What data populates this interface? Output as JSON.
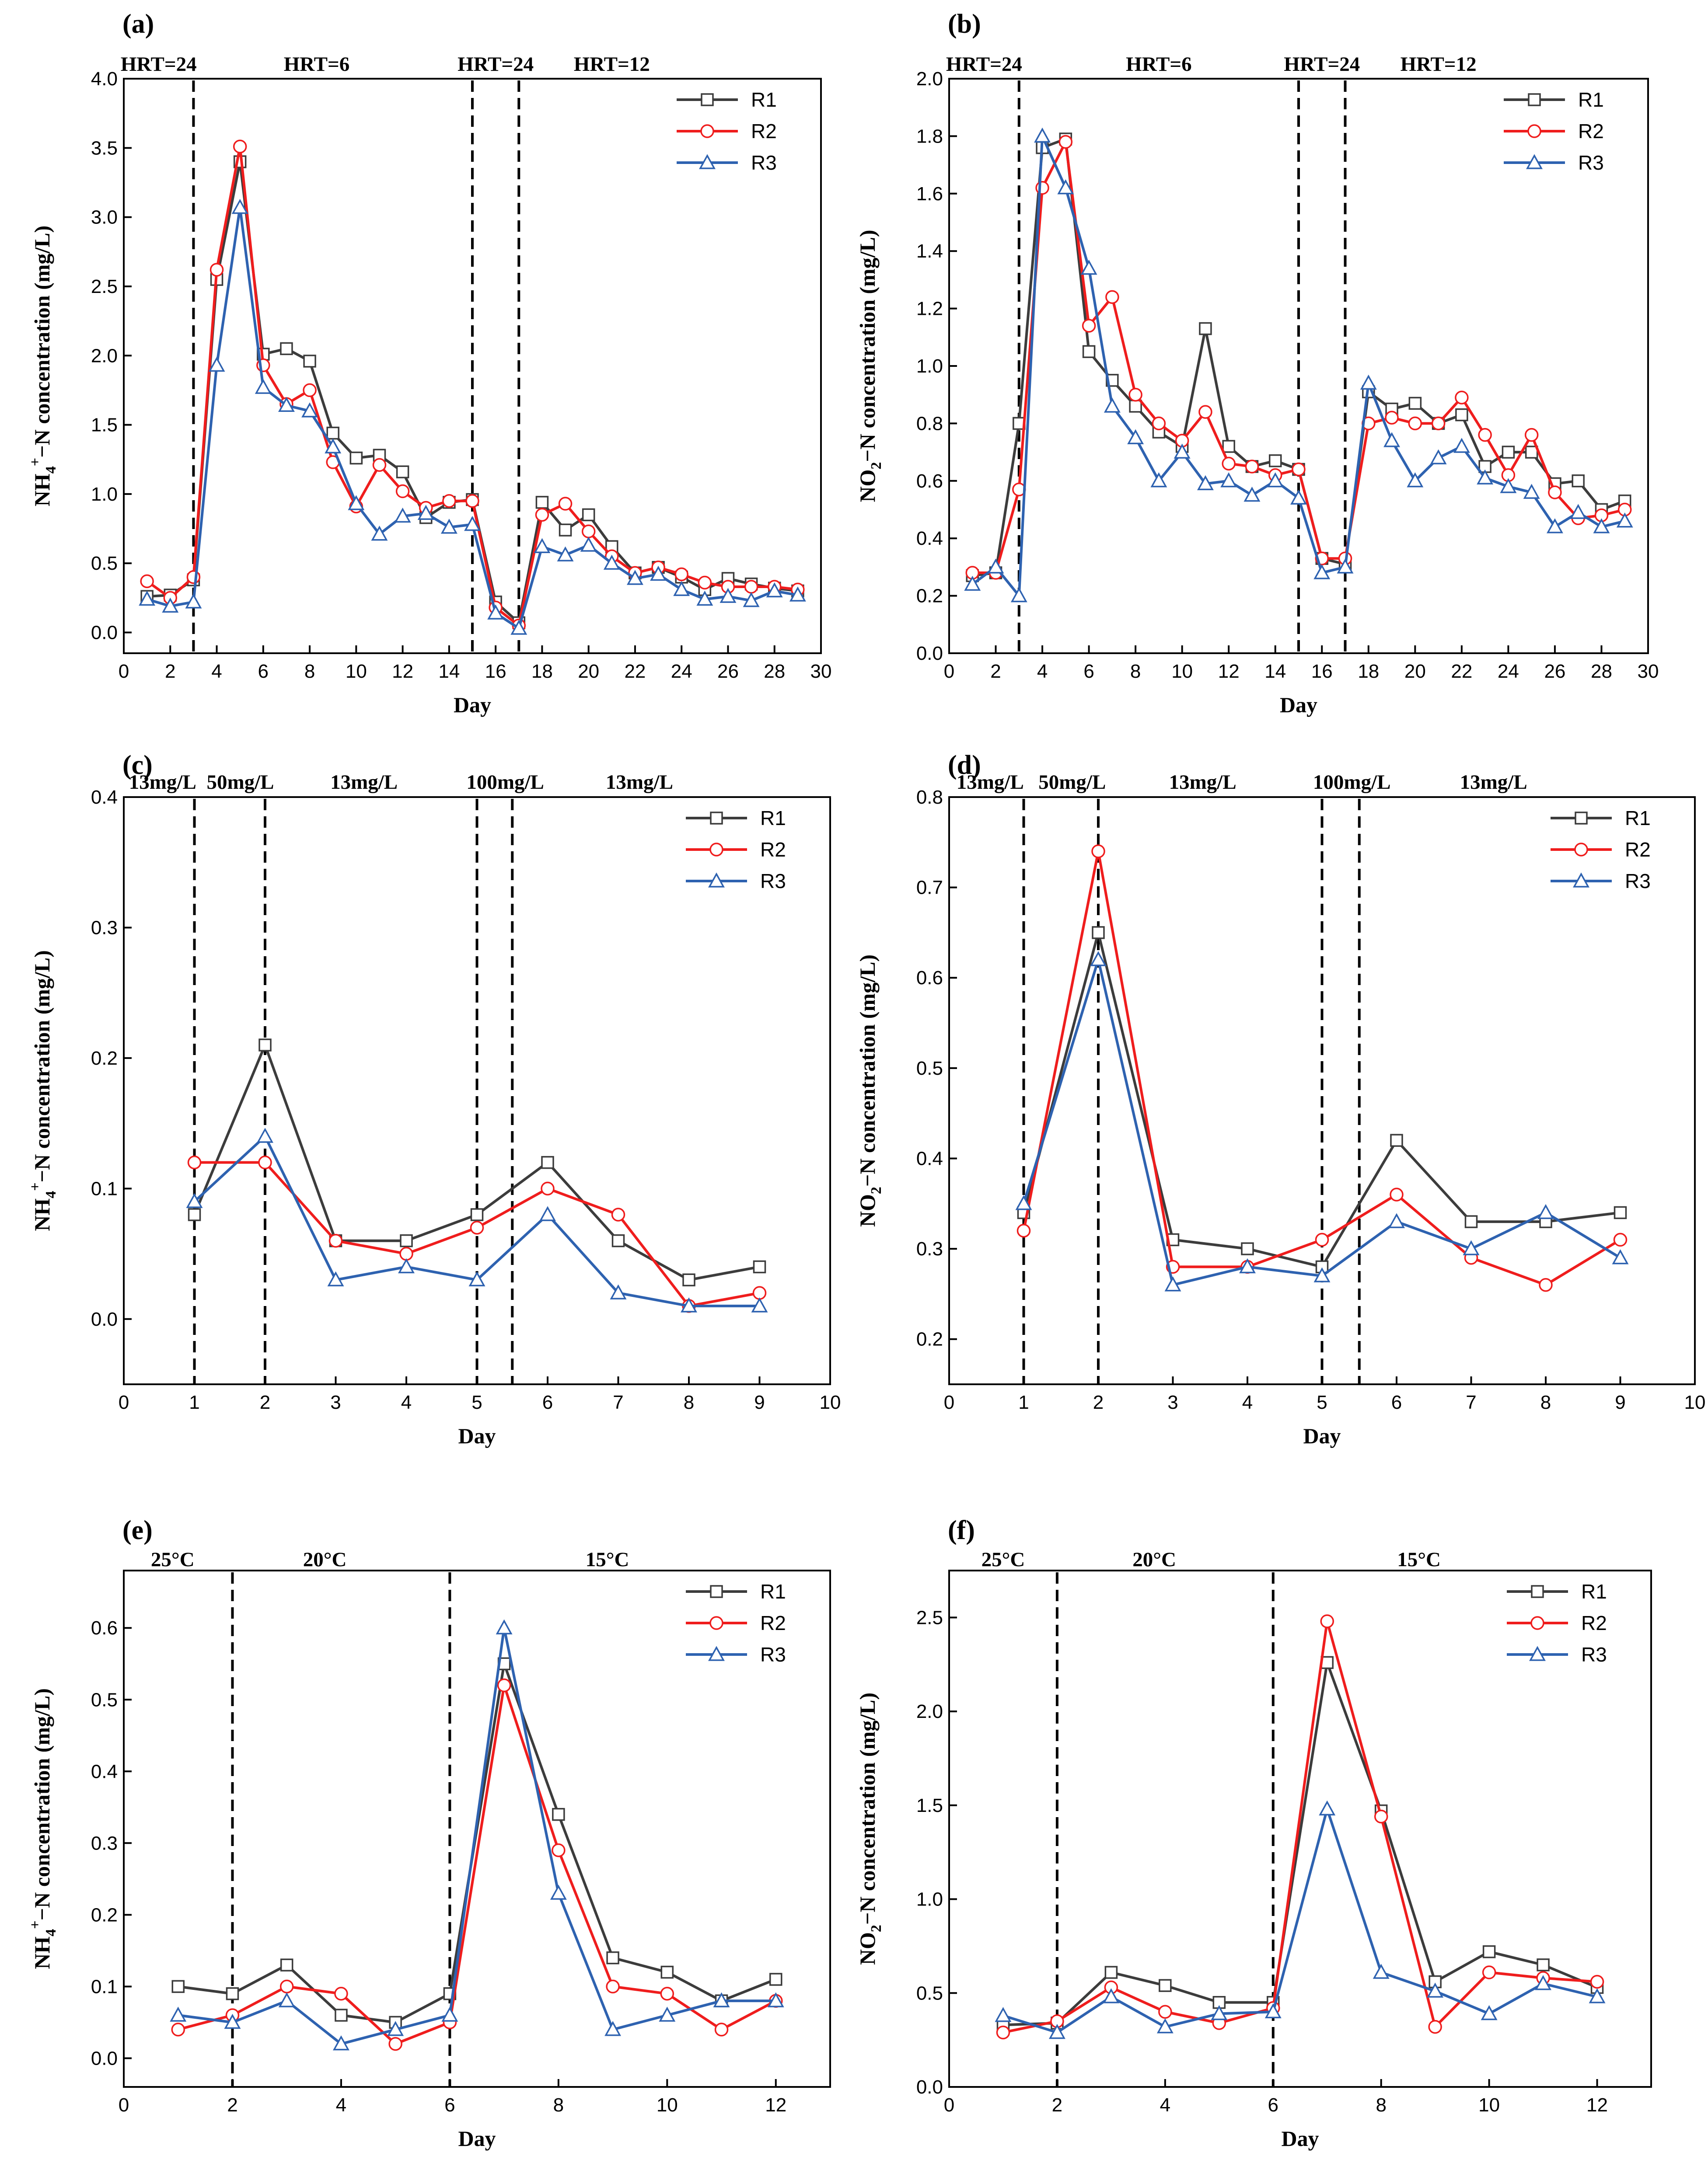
{
  "figure": {
    "panels": [
      "a",
      "b",
      "c",
      "d",
      "e",
      "f"
    ]
  },
  "colors": {
    "R1": "#3c3c3c",
    "R2": "#ef1d1d",
    "R3": "#2e62b0"
  },
  "chart_data": [
    {
      "id": "a",
      "type": "line",
      "panel_label": "(a)",
      "xlabel": "Day",
      "ylabel": "NH4+−N concentration (mg/L)",
      "ylabel_parts": {
        "base": "NH",
        "sub": "4",
        "sup": "+",
        "rest": "−N concentration (mg/L)"
      },
      "xlim": [
        0,
        30
      ],
      "ylim": [
        -0.15,
        4.0
      ],
      "xticks": [
        0,
        2,
        4,
        6,
        8,
        10,
        12,
        14,
        16,
        18,
        20,
        22,
        24,
        26,
        28,
        30
      ],
      "xtick_labels": [
        "0",
        "2",
        "4",
        "6",
        "8",
        "10",
        "12",
        "14",
        "16",
        "18",
        "20",
        "22",
        "24",
        "26",
        "28",
        "30"
      ],
      "yticks": [
        0.0,
        0.5,
        1.0,
        1.5,
        2.0,
        2.5,
        3.0,
        3.5,
        4.0
      ],
      "ytick_labels": [
        "0.0",
        "0.5",
        "1.0",
        "1.5",
        "2.0",
        "2.5",
        "3.0",
        "3.5",
        "4.0"
      ],
      "vlines": [
        3,
        15,
        17
      ],
      "phases": [
        {
          "label": "HRT=24",
          "x": 1.5
        },
        {
          "label": "HRT=6",
          "x": 8.3
        },
        {
          "label": "HRT=24",
          "x": 16.0
        },
        {
          "label": "HRT=12",
          "x": 21.0
        }
      ],
      "legend_position": "top-right",
      "x": [
        1,
        2,
        3,
        4,
        5,
        6,
        7,
        8,
        9,
        10,
        11,
        12,
        13,
        14,
        15,
        16,
        17,
        18,
        19,
        20,
        21,
        22,
        23,
        24,
        25,
        26,
        27,
        28,
        29
      ],
      "series": [
        {
          "name": "R1",
          "values": [
            0.26,
            0.27,
            0.38,
            2.55,
            3.4,
            2.01,
            2.05,
            1.96,
            1.44,
            1.26,
            1.28,
            1.16,
            0.83,
            0.94,
            0.96,
            0.22,
            0.07,
            0.94,
            0.74,
            0.85,
            0.62,
            0.43,
            0.47,
            0.4,
            0.31,
            0.39,
            0.35,
            0.32,
            0.3
          ]
        },
        {
          "name": "R2",
          "values": [
            0.37,
            0.25,
            0.4,
            2.62,
            3.51,
            1.93,
            1.65,
            1.75,
            1.23,
            0.91,
            1.21,
            1.02,
            0.9,
            0.95,
            0.95,
            0.18,
            0.05,
            0.85,
            0.93,
            0.73,
            0.55,
            0.43,
            0.47,
            0.42,
            0.36,
            0.33,
            0.33,
            0.33,
            0.31
          ]
        },
        {
          "name": "R3",
          "values": [
            0.24,
            0.19,
            0.22,
            1.93,
            3.07,
            1.77,
            1.64,
            1.6,
            1.34,
            0.93,
            0.71,
            0.84,
            0.86,
            0.76,
            0.78,
            0.14,
            0.03,
            0.62,
            0.56,
            0.63,
            0.5,
            0.39,
            0.42,
            0.31,
            0.24,
            0.26,
            0.23,
            0.3,
            0.27
          ]
        }
      ]
    },
    {
      "id": "b",
      "type": "line",
      "panel_label": "(b)",
      "xlabel": "Day",
      "ylabel": "NO2−N concentration (mg/L)",
      "ylabel_parts": {
        "base": "NO",
        "sub": "2",
        "sup": "",
        "rest": "−N concentration (mg/L)"
      },
      "xlim": [
        0,
        30
      ],
      "ylim": [
        0.0,
        2.0
      ],
      "xticks": [
        0,
        2,
        4,
        6,
        8,
        10,
        12,
        14,
        16,
        18,
        20,
        22,
        24,
        26,
        28,
        30
      ],
      "xtick_labels": [
        "0",
        "2",
        "4",
        "6",
        "8",
        "10",
        "12",
        "14",
        "16",
        "18",
        "20",
        "22",
        "24",
        "26",
        "28",
        "30"
      ],
      "yticks": [
        0.0,
        0.2,
        0.4,
        0.6,
        0.8,
        1.0,
        1.2,
        1.4,
        1.6,
        1.8,
        2.0
      ],
      "ytick_labels": [
        "0.0",
        "0.2",
        "0.4",
        "0.6",
        "0.8",
        "1.0",
        "1.2",
        "1.4",
        "1.6",
        "1.8",
        "2.0"
      ],
      "vlines": [
        3,
        15,
        17
      ],
      "phases": [
        {
          "label": "HRT=24",
          "x": 1.5
        },
        {
          "label": "HRT=6",
          "x": 9.0
        },
        {
          "label": "HRT=24",
          "x": 16.0
        },
        {
          "label": "HRT=12",
          "x": 21.0
        }
      ],
      "legend_position": "top-right",
      "x": [
        1,
        2,
        3,
        4,
        5,
        6,
        7,
        8,
        9,
        10,
        11,
        12,
        13,
        14,
        15,
        16,
        17,
        18,
        19,
        20,
        21,
        22,
        23,
        24,
        25,
        26,
        27,
        28,
        29
      ],
      "series": [
        {
          "name": "R1",
          "values": [
            0.27,
            0.28,
            0.8,
            1.76,
            1.79,
            1.05,
            0.95,
            0.86,
            0.77,
            0.72,
            1.13,
            0.72,
            0.65,
            0.67,
            0.64,
            0.33,
            0.31,
            0.91,
            0.85,
            0.87,
            0.8,
            0.83,
            0.65,
            0.7,
            0.7,
            0.59,
            0.6,
            0.5,
            0.53
          ]
        },
        {
          "name": "R2",
          "values": [
            0.28,
            0.28,
            0.57,
            1.62,
            1.78,
            1.14,
            1.24,
            0.9,
            0.8,
            0.74,
            0.84,
            0.66,
            0.65,
            0.62,
            0.64,
            0.33,
            0.33,
            0.8,
            0.82,
            0.8,
            0.8,
            0.89,
            0.76,
            0.62,
            0.76,
            0.56,
            0.47,
            0.48,
            0.5
          ]
        },
        {
          "name": "R3",
          "values": [
            0.24,
            0.3,
            0.2,
            1.8,
            1.62,
            1.34,
            0.86,
            0.75,
            0.6,
            0.7,
            0.59,
            0.6,
            0.55,
            0.6,
            0.54,
            0.28,
            0.3,
            0.94,
            0.74,
            0.6,
            0.68,
            0.72,
            0.61,
            0.58,
            0.56,
            0.44,
            0.49,
            0.44,
            0.46
          ]
        }
      ]
    },
    {
      "id": "c",
      "type": "line",
      "panel_label": "(c)",
      "xlabel": "Day",
      "ylabel": "NH4+−N concentration (mg/L)",
      "ylabel_parts": {
        "base": "NH",
        "sub": "4",
        "sup": "+",
        "rest": "−N concentration (mg/L)"
      },
      "xlim": [
        0,
        10
      ],
      "ylim": [
        -0.05,
        0.4
      ],
      "xticks": [
        0,
        1,
        2,
        3,
        4,
        5,
        6,
        7,
        8,
        9,
        10
      ],
      "xtick_labels": [
        "0",
        "1",
        "2",
        "3",
        "4",
        "5",
        "6",
        "7",
        "8",
        "9",
        "10"
      ],
      "yticks": [
        0.0,
        0.1,
        0.2,
        0.3,
        0.4
      ],
      "ytick_labels": [
        "0.0",
        "0.1",
        "0.2",
        "0.3",
        "0.4"
      ],
      "vlines": [
        1,
        2,
        5,
        5.5
      ],
      "phases": [
        {
          "label": "13mg/L",
          "x": 0.55
        },
        {
          "label": "50mg/L",
          "x": 1.65
        },
        {
          "label": "13mg/L",
          "x": 3.4
        },
        {
          "label": "100mg/L",
          "x": 5.4
        },
        {
          "label": "13mg/L",
          "x": 7.3
        }
      ],
      "legend_position": "top-right",
      "x": [
        1,
        2,
        3,
        4,
        5,
        6,
        7,
        8,
        9
      ],
      "series": [
        {
          "name": "R1",
          "values": [
            0.08,
            0.21,
            0.06,
            0.06,
            0.08,
            0.12,
            0.06,
            0.03,
            0.04
          ]
        },
        {
          "name": "R2",
          "values": [
            0.12,
            0.12,
            0.06,
            0.05,
            0.07,
            0.1,
            0.08,
            0.01,
            0.02
          ]
        },
        {
          "name": "R3",
          "values": [
            0.09,
            0.14,
            0.03,
            0.04,
            0.03,
            0.08,
            0.02,
            0.01,
            0.01
          ]
        }
      ]
    },
    {
      "id": "d",
      "type": "line",
      "panel_label": "(d)",
      "xlabel": "Day",
      "ylabel": "NO2−N concentration (mg/L)",
      "ylabel_parts": {
        "base": "NO",
        "sub": "2",
        "sup": "",
        "rest": "−N concentration (mg/L)"
      },
      "xlim": [
        0,
        10
      ],
      "ylim": [
        0.15,
        0.8
      ],
      "xticks": [
        0,
        1,
        2,
        3,
        4,
        5,
        6,
        7,
        8,
        9,
        10
      ],
      "xtick_labels": [
        "0",
        "1",
        "2",
        "3",
        "4",
        "5",
        "6",
        "7",
        "8",
        "9",
        "10"
      ],
      "yticks": [
        0.2,
        0.3,
        0.4,
        0.5,
        0.6,
        0.7,
        0.8
      ],
      "ytick_labels": [
        "0.2",
        "0.3",
        "0.4",
        "0.5",
        "0.6",
        "0.7",
        "0.8"
      ],
      "vlines": [
        1,
        2,
        5,
        5.5
      ],
      "phases": [
        {
          "label": "13mg/L",
          "x": 0.55
        },
        {
          "label": "50mg/L",
          "x": 1.65
        },
        {
          "label": "13mg/L",
          "x": 3.4
        },
        {
          "label": "100mg/L",
          "x": 5.4
        },
        {
          "label": "13mg/L",
          "x": 7.3
        }
      ],
      "legend_position": "top-right",
      "x": [
        1,
        2,
        3,
        4,
        5,
        6,
        7,
        8,
        9
      ],
      "series": [
        {
          "name": "R1",
          "values": [
            0.34,
            0.65,
            0.31,
            0.3,
            0.28,
            0.42,
            0.33,
            0.33,
            0.34
          ]
        },
        {
          "name": "R2",
          "values": [
            0.32,
            0.74,
            0.28,
            0.28,
            0.31,
            0.36,
            0.29,
            0.26,
            0.31
          ]
        },
        {
          "name": "R3",
          "values": [
            0.35,
            0.62,
            0.26,
            0.28,
            0.27,
            0.33,
            0.3,
            0.34,
            0.29
          ]
        }
      ]
    },
    {
      "id": "e",
      "type": "line",
      "panel_label": "(e)",
      "xlabel": "Day",
      "ylabel": "NH4+−N concentration (mg/L)",
      "ylabel_parts": {
        "base": "NH",
        "sub": "4",
        "sup": "+",
        "rest": "−N concentration (mg/L)"
      },
      "xlim": [
        0,
        13
      ],
      "ylim": [
        -0.04,
        0.68
      ],
      "xticks": [
        0,
        2,
        4,
        6,
        8,
        10,
        12
      ],
      "xtick_labels": [
        "0",
        "2",
        "4",
        "6",
        "8",
        "10",
        "12"
      ],
      "yticks": [
        0.0,
        0.1,
        0.2,
        0.3,
        0.4,
        0.5,
        0.6
      ],
      "ytick_labels": [
        "0.0",
        "0.1",
        "0.2",
        "0.3",
        "0.4",
        "0.5",
        "0.6"
      ],
      "vlines": [
        2,
        6
      ],
      "phases": [
        {
          "label": "25°C",
          "x": 0.9
        },
        {
          "label": "20°C",
          "x": 3.7
        },
        {
          "label": "15°C",
          "x": 8.9
        }
      ],
      "legend_position": "top-right",
      "x": [
        1,
        2,
        3,
        4,
        5,
        6,
        7,
        8,
        9,
        10,
        11,
        12
      ],
      "series": [
        {
          "name": "R1",
          "values": [
            0.1,
            0.09,
            0.13,
            0.06,
            0.05,
            0.09,
            0.55,
            0.34,
            0.14,
            0.12,
            0.08,
            0.11
          ]
        },
        {
          "name": "R2",
          "values": [
            0.04,
            0.06,
            0.1,
            0.09,
            0.02,
            0.05,
            0.52,
            0.29,
            0.1,
            0.09,
            0.04,
            0.08
          ]
        },
        {
          "name": "R3",
          "values": [
            0.06,
            0.05,
            0.08,
            0.02,
            0.04,
            0.06,
            0.6,
            0.23,
            0.04,
            0.06,
            0.08,
            0.08
          ]
        }
      ]
    },
    {
      "id": "f",
      "type": "line",
      "panel_label": "(f)",
      "xlabel": "Day",
      "ylabel": "NO2−N concentration (mg/L)",
      "ylabel_parts": {
        "base": "NO",
        "sub": "2",
        "sup": "",
        "rest": "−N concentration (mg/L)"
      },
      "xlim": [
        0,
        13
      ],
      "ylim": [
        0.0,
        2.75
      ],
      "xticks": [
        0,
        2,
        4,
        6,
        8,
        10,
        12
      ],
      "xtick_labels": [
        "0",
        "2",
        "4",
        "6",
        "8",
        "10",
        "12"
      ],
      "yticks": [
        0.0,
        0.5,
        1.0,
        1.5,
        2.0,
        2.5
      ],
      "ytick_labels": [
        "0.0",
        "0.5",
        "1.0",
        "1.5",
        "2.0",
        "2.5"
      ],
      "vlines": [
        2,
        6
      ],
      "phases": [
        {
          "label": "25°C",
          "x": 1.0
        },
        {
          "label": "20°C",
          "x": 3.8
        },
        {
          "label": "15°C",
          "x": 8.7
        }
      ],
      "legend_position": "top-right",
      "x": [
        1,
        2,
        3,
        4,
        5,
        6,
        7,
        8,
        9,
        10,
        11,
        12
      ],
      "series": [
        {
          "name": "R1",
          "values": [
            0.33,
            0.34,
            0.61,
            0.54,
            0.45,
            0.45,
            2.26,
            1.47,
            0.56,
            0.72,
            0.65,
            0.53
          ]
        },
        {
          "name": "R2",
          "values": [
            0.29,
            0.35,
            0.53,
            0.4,
            0.34,
            0.42,
            2.48,
            1.44,
            0.32,
            0.61,
            0.58,
            0.56
          ]
        },
        {
          "name": "R3",
          "values": [
            0.38,
            0.29,
            0.48,
            0.32,
            0.39,
            0.4,
            1.48,
            0.61,
            0.51,
            0.39,
            0.55,
            0.48
          ]
        }
      ]
    }
  ]
}
